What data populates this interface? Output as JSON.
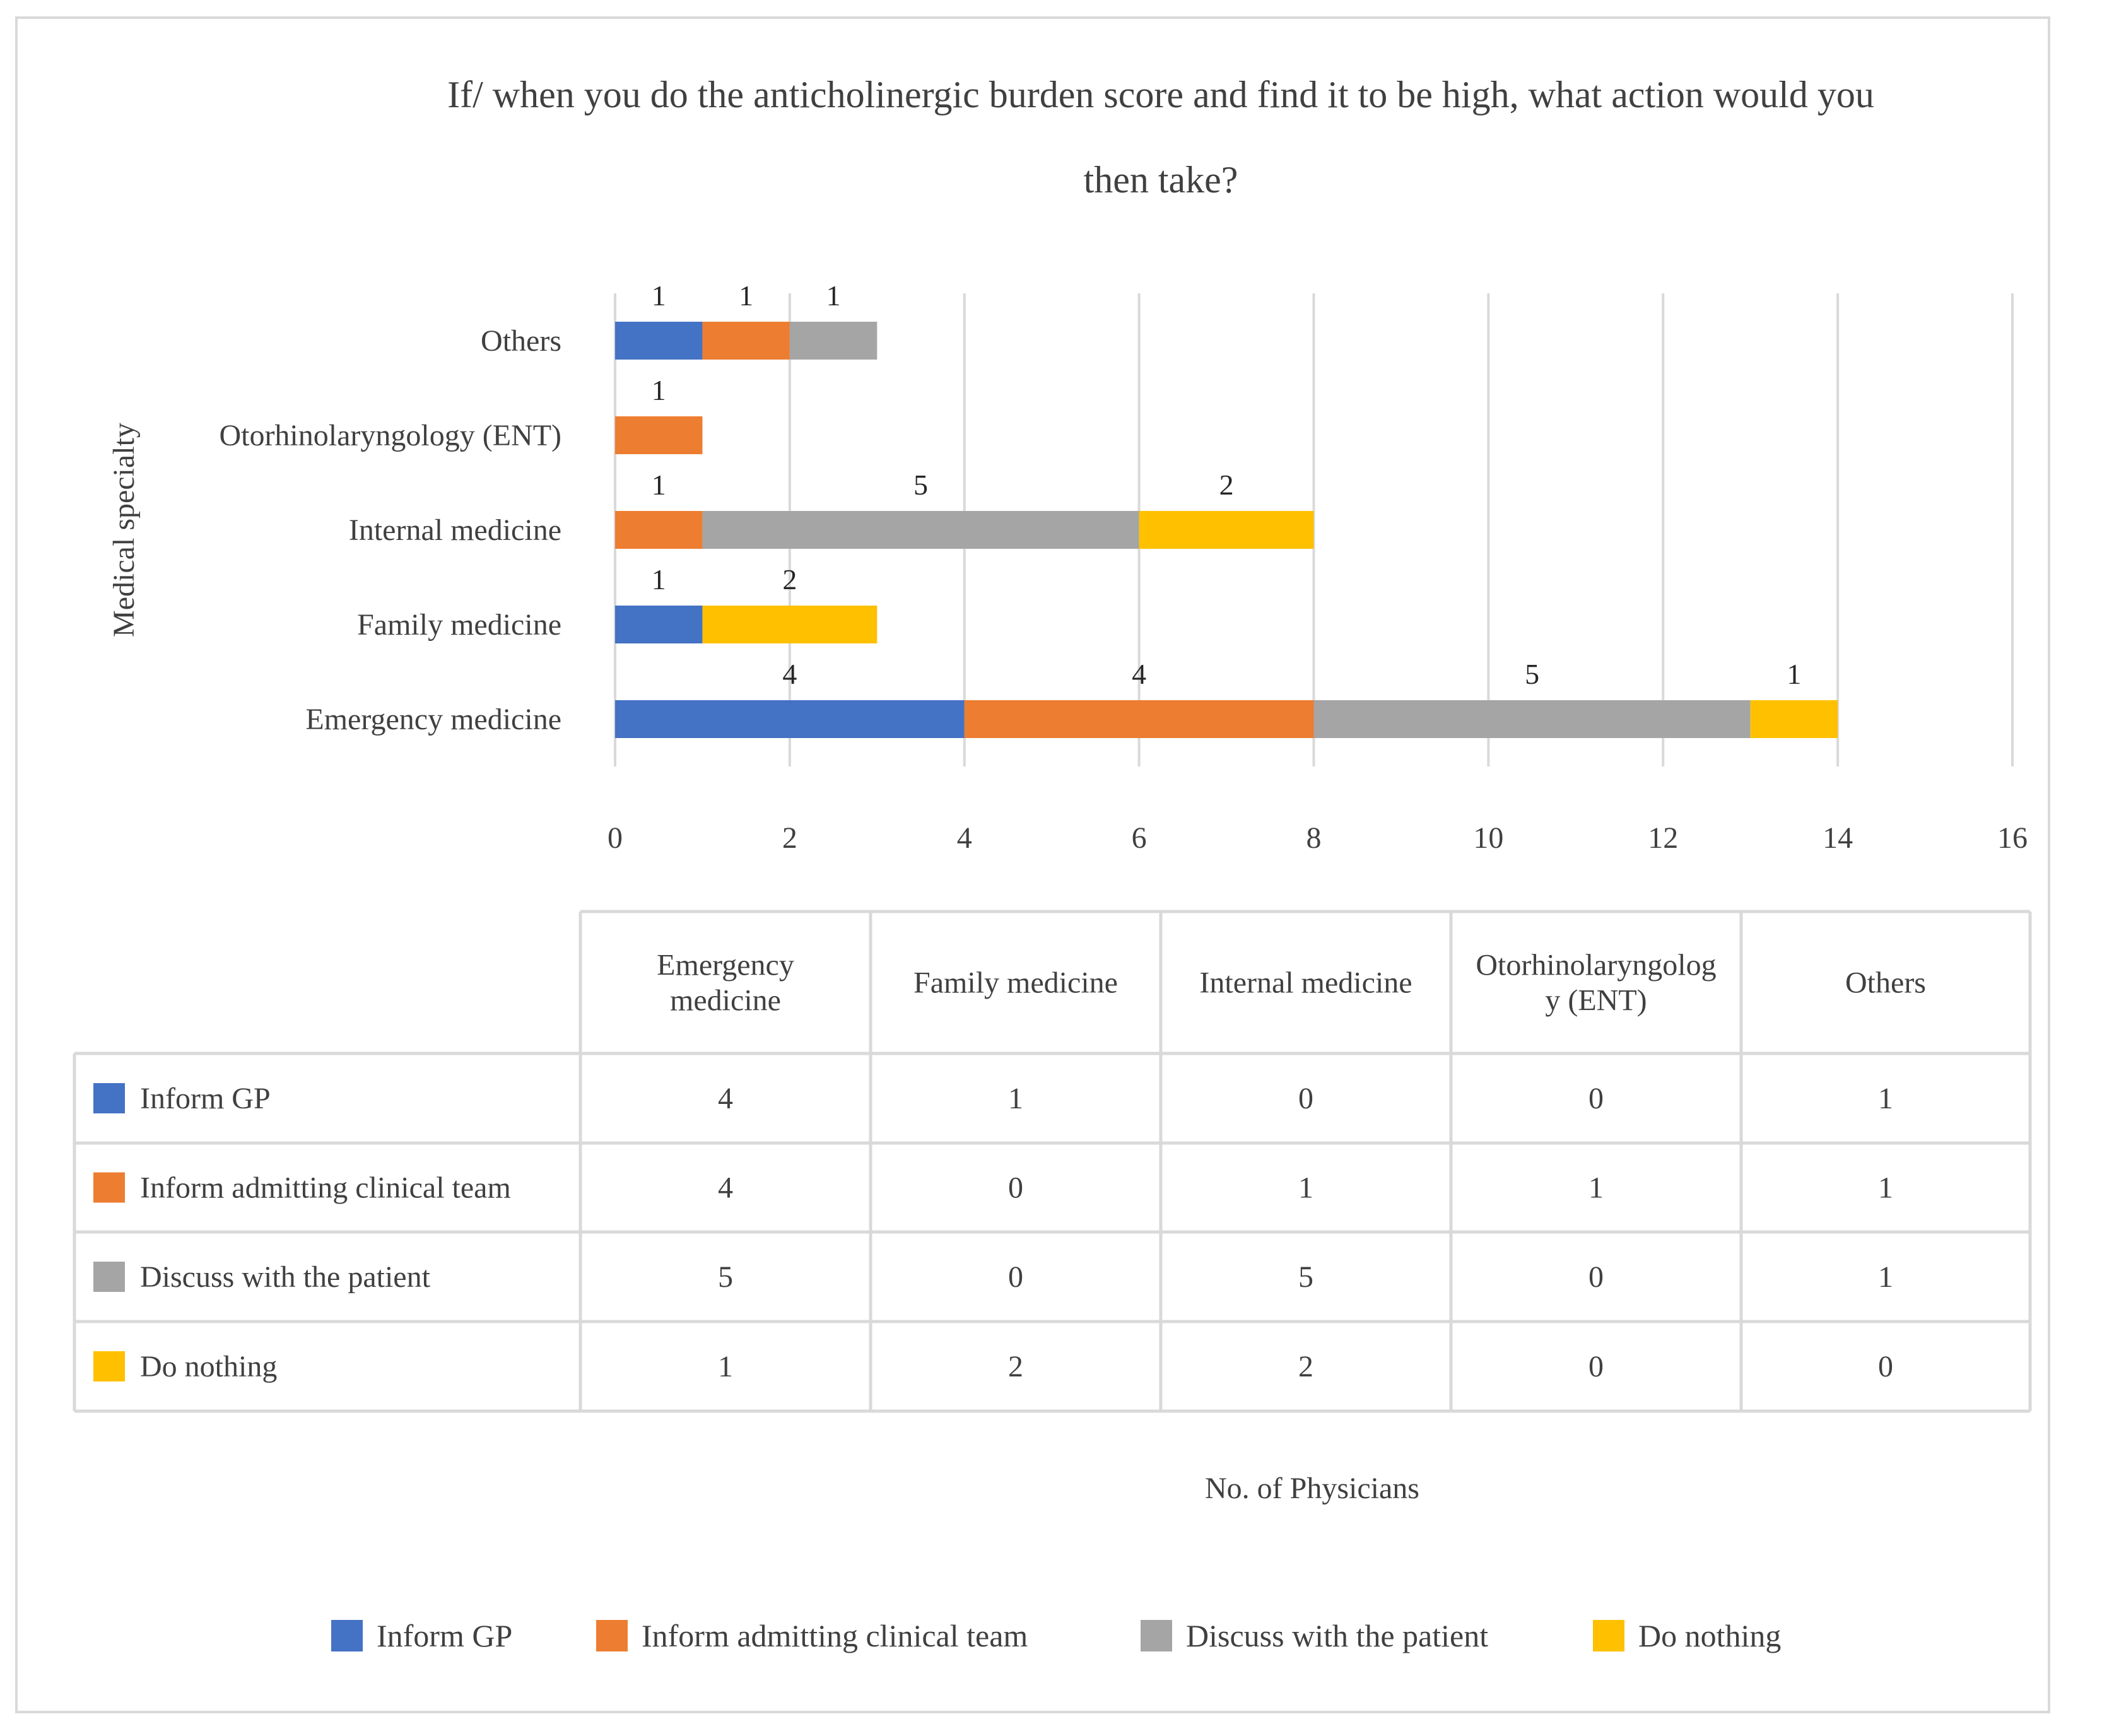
{
  "chart_data": {
    "type": "bar",
    "orientation": "horizontal",
    "stacked": true,
    "title": "If/ when you do the anticholinergic burden score and find it to be high, what action would you then take?",
    "title_lines": [
      "If/ when you do the anticholinergic burden score and find it to be high, what action would you",
      "then take?"
    ],
    "ylabel": "Medical specialty",
    "xlabel": "No. of Physicians",
    "xlim": [
      0,
      16
    ],
    "xticks": [
      "0",
      "2",
      "4",
      "6",
      "8",
      "10",
      "12",
      "14",
      "16"
    ],
    "categories": [
      "Emergency medicine",
      "Family medicine",
      "Internal medicine",
      "Otorhinolaryngology (ENT)",
      "Others"
    ],
    "table_headers": [
      [
        "Emergency",
        "medicine"
      ],
      [
        "Family medicine"
      ],
      [
        "Internal medicine"
      ],
      [
        "Otorhinolaryngolog",
        "y (ENT)"
      ],
      [
        "Others"
      ]
    ],
    "series": [
      {
        "name": "Inform GP",
        "color": "#4472c4",
        "values": [
          4,
          1,
          0,
          0,
          1
        ]
      },
      {
        "name": "Inform admitting clinical team",
        "color": "#ed7d31",
        "values": [
          4,
          0,
          1,
          1,
          1
        ]
      },
      {
        "name": "Discuss with the patient",
        "color": "#a5a5a5",
        "values": [
          5,
          0,
          5,
          0,
          1
        ]
      },
      {
        "name": "Do nothing",
        "color": "#ffc000",
        "values": [
          1,
          2,
          2,
          0,
          0
        ]
      }
    ],
    "grid": true,
    "legend_position": "bottom",
    "data_table": true
  }
}
